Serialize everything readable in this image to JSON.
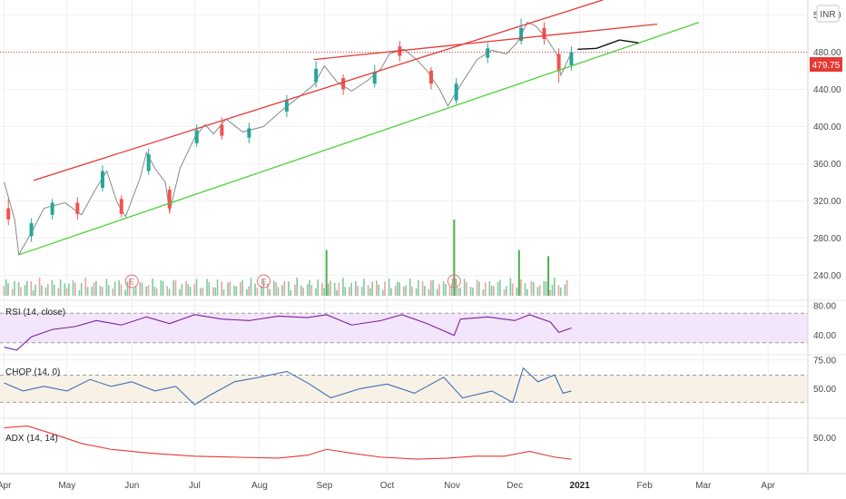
{
  "chart_data": [
    {
      "type": "candlestick",
      "currency": "INR",
      "last_price": "479.75",
      "y_ticks": [
        "520.00",
        "480.00",
        "440.00",
        "400.00",
        "360.00",
        "320.00",
        "280.00",
        "240.00"
      ],
      "y_tick_values": [
        520,
        480,
        440,
        400,
        360,
        320,
        280,
        240
      ],
      "ylim": [
        214,
        536
      ],
      "x_ticks": [
        "Apr",
        "May",
        "Jun",
        "Jul",
        "Aug",
        "Sep",
        "Oct",
        "Nov",
        "Dec",
        "2021",
        "Feb",
        "Mar",
        "Apr"
      ],
      "x_tick_dates": [
        "2020-04-01",
        "2020-05-01",
        "2020-06-01",
        "2020-07-01",
        "2020-08-01",
        "2020-09-01",
        "2020-10-01",
        "2020-11-01",
        "2020-12-01",
        "2021-01-01",
        "2021-02-01",
        "2021-03-01",
        "2021-04-01"
      ],
      "xlim": [
        "2020-03-30",
        "2021-04-20"
      ],
      "close_path": [
        [
          "2020-04-01",
          340
        ],
        [
          "2020-04-06",
          300
        ],
        [
          "2020-04-08",
          262
        ],
        [
          "2020-04-15",
          290
        ],
        [
          "2020-04-20",
          312
        ],
        [
          "2020-04-30",
          318
        ],
        [
          "2020-05-08",
          305
        ],
        [
          "2020-05-14",
          330
        ],
        [
          "2020-05-20",
          352
        ],
        [
          "2020-05-25",
          318
        ],
        [
          "2020-05-29",
          303
        ],
        [
          "2020-06-05",
          345
        ],
        [
          "2020-06-08",
          372
        ],
        [
          "2020-06-12",
          355
        ],
        [
          "2020-06-17",
          340
        ],
        [
          "2020-06-19",
          308
        ],
        [
          "2020-06-24",
          355
        ],
        [
          "2020-07-01",
          388
        ],
        [
          "2020-07-06",
          402
        ],
        [
          "2020-07-10",
          392
        ],
        [
          "2020-07-16",
          408
        ],
        [
          "2020-07-24",
          394
        ],
        [
          "2020-08-03",
          400
        ],
        [
          "2020-08-12",
          418
        ],
        [
          "2020-08-20",
          432
        ],
        [
          "2020-08-27",
          445
        ],
        [
          "2020-09-01",
          465
        ],
        [
          "2020-09-07",
          448
        ],
        [
          "2020-09-14",
          438
        ],
        [
          "2020-09-22",
          450
        ],
        [
          "2020-09-28",
          462
        ],
        [
          "2020-10-02",
          478
        ],
        [
          "2020-10-09",
          483
        ],
        [
          "2020-10-15",
          472
        ],
        [
          "2020-10-20",
          460
        ],
        [
          "2020-10-26",
          440
        ],
        [
          "2020-10-30",
          422
        ],
        [
          "2020-11-06",
          448
        ],
        [
          "2020-11-13",
          472
        ],
        [
          "2020-11-20",
          482
        ],
        [
          "2020-11-27",
          478
        ],
        [
          "2020-12-02",
          490
        ],
        [
          "2020-12-07",
          512
        ],
        [
          "2020-12-11",
          508
        ],
        [
          "2020-12-16",
          495
        ],
        [
          "2020-12-21",
          478
        ],
        [
          "2020-12-23",
          455
        ],
        [
          "2020-12-28",
          479.75
        ]
      ],
      "candles": [
        {
          "date": "2020-04-03",
          "open": 312,
          "close": 300,
          "high": 322,
          "low": 294
        },
        {
          "date": "2020-04-14",
          "open": 282,
          "close": 296,
          "high": 301,
          "low": 276
        },
        {
          "date": "2020-04-24",
          "open": 305,
          "close": 318,
          "high": 322,
          "low": 300
        },
        {
          "date": "2020-05-06",
          "open": 318,
          "close": 306,
          "high": 324,
          "low": 300
        },
        {
          "date": "2020-05-18",
          "open": 334,
          "close": 352,
          "high": 358,
          "low": 330
        },
        {
          "date": "2020-05-27",
          "open": 322,
          "close": 306,
          "high": 326,
          "low": 302
        },
        {
          "date": "2020-06-09",
          "open": 352,
          "close": 370,
          "high": 376,
          "low": 348
        },
        {
          "date": "2020-06-19",
          "open": 332,
          "close": 312,
          "high": 336,
          "low": 306
        },
        {
          "date": "2020-07-02",
          "open": 382,
          "close": 396,
          "high": 402,
          "low": 378
        },
        {
          "date": "2020-07-14",
          "open": 402,
          "close": 390,
          "high": 410,
          "low": 386
        },
        {
          "date": "2020-07-27",
          "open": 388,
          "close": 398,
          "high": 404,
          "low": 382
        },
        {
          "date": "2020-08-14",
          "open": 416,
          "close": 428,
          "high": 434,
          "low": 410
        },
        {
          "date": "2020-08-28",
          "open": 448,
          "close": 462,
          "high": 470,
          "low": 442
        },
        {
          "date": "2020-09-10",
          "open": 452,
          "close": 440,
          "high": 456,
          "low": 434
        },
        {
          "date": "2020-09-25",
          "open": 446,
          "close": 458,
          "high": 466,
          "low": 442
        },
        {
          "date": "2020-10-07",
          "open": 486,
          "close": 476,
          "high": 492,
          "low": 470
        },
        {
          "date": "2020-10-22",
          "open": 460,
          "close": 446,
          "high": 464,
          "low": 440
        },
        {
          "date": "2020-11-03",
          "open": 428,
          "close": 446,
          "high": 452,
          "low": 424
        },
        {
          "date": "2020-11-18",
          "open": 474,
          "close": 484,
          "high": 490,
          "low": 468
        },
        {
          "date": "2020-12-04",
          "open": 492,
          "close": 506,
          "high": 516,
          "low": 488
        },
        {
          "date": "2020-12-15",
          "open": 506,
          "close": 494,
          "high": 512,
          "low": 488
        },
        {
          "date": "2020-12-22",
          "open": 478,
          "close": 460,
          "high": 484,
          "low": 447
        },
        {
          "date": "2020-12-28",
          "open": 466,
          "close": 479.75,
          "high": 486,
          "low": 460
        }
      ],
      "volume_spikes": [
        {
          "date": "2020-09-02",
          "value": 0.6
        },
        {
          "date": "2020-11-02",
          "value": 1.0
        },
        {
          "date": "2020-12-03",
          "value": 0.6
        },
        {
          "date": "2020-12-17",
          "value": 0.52
        }
      ],
      "earnings_markers": [
        {
          "date": "2020-06-01",
          "label": "E"
        },
        {
          "date": "2020-08-03",
          "label": "E"
        },
        {
          "date": "2020-11-02",
          "label": "E"
        }
      ],
      "trendlines": [
        {
          "color": "#e53935",
          "points": [
            [
              "2020-04-15",
              342
            ],
            [
              "2021-01-12",
              536
            ]
          ]
        },
        {
          "color": "#e53935",
          "points": [
            [
              "2020-08-27",
              472
            ],
            [
              "2021-02-07",
              510
            ]
          ]
        },
        {
          "color": "#4cd137",
          "points": [
            [
              "2020-04-08",
              262
            ],
            [
              "2021-02-27",
              512
            ]
          ]
        }
      ],
      "projection": [
        [
          "2020-12-31",
          483
        ],
        [
          "2021-01-09",
          484
        ],
        [
          "2021-01-20",
          493
        ],
        [
          "2021-01-29",
          490
        ]
      ]
    },
    {
      "type": "line",
      "label": "RSI (14, close)",
      "y_ticks": [
        "80.00",
        "40.00"
      ],
      "y_tick_values": [
        80,
        40
      ],
      "ylim": [
        15,
        85
      ],
      "band": [
        30,
        70
      ],
      "series": [
        {
          "values": [
            [
              "2020-04-01",
              24
            ],
            [
              "2020-04-07",
              20
            ],
            [
              "2020-04-14",
              38
            ],
            [
              "2020-04-24",
              48
            ],
            [
              "2020-05-05",
              52
            ],
            [
              "2020-05-15",
              60
            ],
            [
              "2020-05-27",
              54
            ],
            [
              "2020-06-08",
              65
            ],
            [
              "2020-06-19",
              56
            ],
            [
              "2020-07-01",
              68
            ],
            [
              "2020-07-14",
              62
            ],
            [
              "2020-07-27",
              60
            ],
            [
              "2020-08-10",
              66
            ],
            [
              "2020-08-24",
              64
            ],
            [
              "2020-09-02",
              68
            ],
            [
              "2020-09-14",
              54
            ],
            [
              "2020-09-28",
              60
            ],
            [
              "2020-10-08",
              68
            ],
            [
              "2020-10-20",
              56
            ],
            [
              "2020-11-02",
              40
            ],
            [
              "2020-11-05",
              62
            ],
            [
              "2020-11-18",
              65
            ],
            [
              "2020-12-01",
              60
            ],
            [
              "2020-12-08",
              68
            ],
            [
              "2020-12-18",
              58
            ],
            [
              "2020-12-22",
              44
            ],
            [
              "2020-12-28",
              50
            ]
          ]
        }
      ]
    },
    {
      "type": "line",
      "label": "CHOP (14, 0)",
      "y_ticks": [
        "75.00",
        "50.00"
      ],
      "y_tick_values": [
        75,
        50
      ],
      "ylim": [
        25,
        78
      ],
      "band": [
        38.2,
        61.8
      ],
      "series": [
        {
          "values": [
            [
              "2020-04-01",
              55
            ],
            [
              "2020-04-10",
              48
            ],
            [
              "2020-04-20",
              52
            ],
            [
              "2020-05-01",
              48
            ],
            [
              "2020-05-12",
              58
            ],
            [
              "2020-05-22",
              52
            ],
            [
              "2020-06-01",
              56
            ],
            [
              "2020-06-12",
              48
            ],
            [
              "2020-06-22",
              52
            ],
            [
              "2020-07-01",
              36
            ],
            [
              "2020-07-08",
              44
            ],
            [
              "2020-07-20",
              56
            ],
            [
              "2020-08-01",
              60
            ],
            [
              "2020-08-14",
              65
            ],
            [
              "2020-08-24",
              55
            ],
            [
              "2020-09-04",
              42
            ],
            [
              "2020-09-18",
              50
            ],
            [
              "2020-10-01",
              54
            ],
            [
              "2020-10-14",
              46
            ],
            [
              "2020-10-28",
              60
            ],
            [
              "2020-11-06",
              42
            ],
            [
              "2020-11-20",
              48
            ],
            [
              "2020-11-30",
              38
            ],
            [
              "2020-12-05",
              68
            ],
            [
              "2020-12-12",
              56
            ],
            [
              "2020-12-20",
              62
            ],
            [
              "2020-12-24",
              46
            ],
            [
              "2020-12-28",
              48
            ]
          ]
        }
      ]
    },
    {
      "type": "line",
      "label": "ADX (14, 14)",
      "y_ticks": [
        "50.00"
      ],
      "y_tick_values": [
        50
      ],
      "ylim": [
        15,
        68
      ],
      "series": [
        {
          "values": [
            [
              "2020-04-01",
              60
            ],
            [
              "2020-04-12",
              62
            ],
            [
              "2020-04-24",
              54
            ],
            [
              "2020-05-08",
              44
            ],
            [
              "2020-05-22",
              38
            ],
            [
              "2020-06-10",
              34
            ],
            [
              "2020-07-01",
              31
            ],
            [
              "2020-07-20",
              30
            ],
            [
              "2020-08-10",
              29
            ],
            [
              "2020-08-24",
              32
            ],
            [
              "2020-09-02",
              38
            ],
            [
              "2020-09-14",
              34
            ],
            [
              "2020-09-28",
              30
            ],
            [
              "2020-10-15",
              28
            ],
            [
              "2020-10-30",
              29
            ],
            [
              "2020-11-12",
              31
            ],
            [
              "2020-11-26",
              31
            ],
            [
              "2020-12-08",
              36
            ],
            [
              "2020-12-20",
              30
            ],
            [
              "2020-12-28",
              28
            ]
          ]
        }
      ]
    }
  ]
}
